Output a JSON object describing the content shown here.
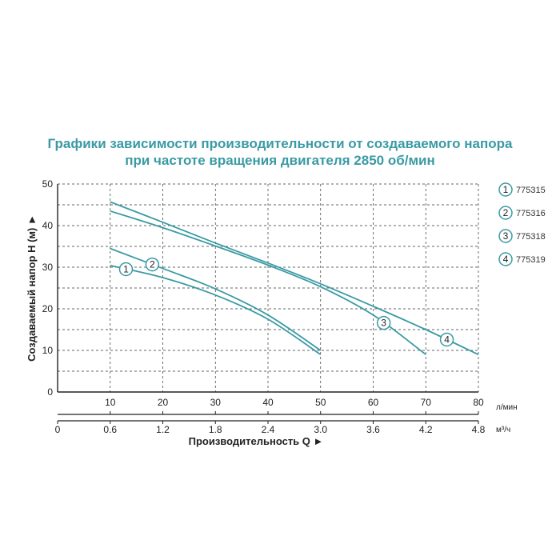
{
  "chart_data": {
    "type": "line",
    "title": "Графики зависимости производительности от создаваемого напора",
    "subtitle": "при частоте вращения двигателя 2850 об/мин",
    "ylabel": "Создаваемый напор H (м) ►",
    "xlabel": "Производительность Q ►",
    "x_unit": "л/мин",
    "x2_unit": "м³/ч",
    "ylim": [
      0,
      50
    ],
    "xlim": [
      0,
      80
    ],
    "y_ticks": [
      "0",
      "10",
      "20",
      "30",
      "40",
      "50"
    ],
    "x_ticks": [
      "10",
      "20",
      "30",
      "40",
      "50",
      "60",
      "70",
      "80"
    ],
    "x2_ticks": [
      "0",
      "0.6",
      "1.2",
      "1.8",
      "2.4",
      "3.0",
      "3.6",
      "4.2",
      "4.8"
    ],
    "grid": true,
    "legend_position": "right",
    "series": [
      {
        "name": "775315",
        "marker": "1",
        "x": [
          10,
          20,
          30,
          40,
          50
        ],
        "y": [
          30.4,
          27.5,
          23.3,
          17.5,
          9
        ]
      },
      {
        "name": "775316",
        "marker": "2",
        "x": [
          10,
          20,
          30,
          40,
          50
        ],
        "y": [
          34.5,
          29.7,
          24.8,
          18.5,
          10
        ]
      },
      {
        "name": "775318",
        "marker": "3",
        "x": [
          10,
          20,
          30,
          40,
          50,
          60,
          70
        ],
        "y": [
          43.5,
          39.5,
          35.1,
          30.5,
          25.3,
          18.5,
          9
        ]
      },
      {
        "name": "775319",
        "marker": "4",
        "x": [
          10,
          20,
          30,
          40,
          50,
          60,
          70,
          80
        ],
        "y": [
          45.7,
          40.8,
          35.8,
          31,
          26,
          20.6,
          15,
          9
        ]
      }
    ]
  }
}
